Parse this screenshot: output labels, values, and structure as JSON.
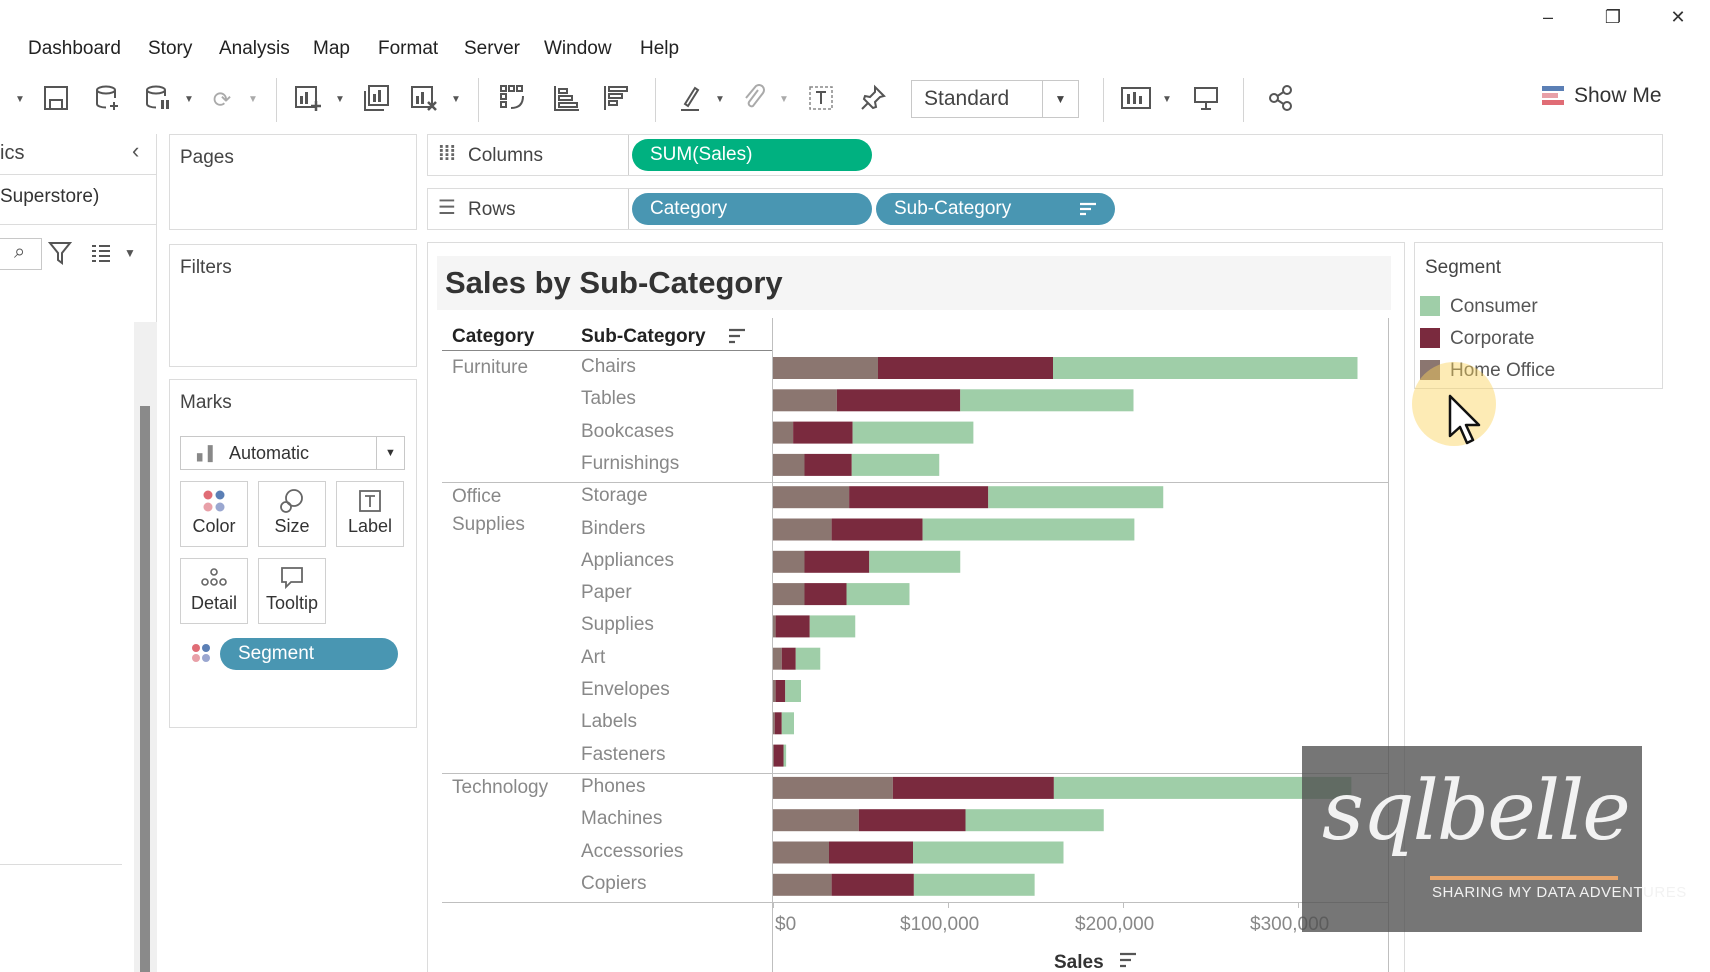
{
  "window": {
    "controls": {
      "minimize": "–",
      "restore": "❐",
      "close": "✕"
    }
  },
  "menu": {
    "items": [
      "Dashboard",
      "Story",
      "Analysis",
      "Map",
      "Format",
      "Server",
      "Window",
      "Help"
    ]
  },
  "toolbar": {
    "fit_select": {
      "value": "Standard"
    },
    "show_me": "Show Me"
  },
  "data_pane": {
    "tab_fragment": "ics",
    "datasource_fragment": "Superstore)"
  },
  "cards": {
    "pages": "Pages",
    "filters": "Filters",
    "marks": "Marks",
    "mark_type": "Automatic",
    "mark_buttons": {
      "color": "Color",
      "size": "Size",
      "label": "Label",
      "detail": "Detail",
      "tooltip": "Tooltip"
    },
    "color_pill": "Segment"
  },
  "shelves": {
    "columns_label": "Columns",
    "rows_label": "Rows",
    "columns_pills": [
      "SUM(Sales)"
    ],
    "rows_pills": [
      "Category",
      "Sub-Category"
    ]
  },
  "legend": {
    "title": "Segment",
    "items": [
      {
        "label": "Consumer",
        "color": "#9fcea8"
      },
      {
        "label": "Corporate",
        "color": "#7a2a3e"
      },
      {
        "label": "Home Office",
        "color": "#8b7670"
      }
    ]
  },
  "chart_data": {
    "type": "bar",
    "orientation": "horizontal-stacked",
    "title": "Sales by Sub-Category",
    "column_headers": [
      "Category",
      "Sub-Category"
    ],
    "xlabel": "Sales",
    "xlim": [
      0,
      350000
    ],
    "x_ticks": [
      "$0",
      "$100,000",
      "$200,000",
      "$300,000"
    ],
    "grid": false,
    "series_names": [
      "Home Office",
      "Corporate",
      "Consumer"
    ],
    "series_colors": [
      "#8b7670",
      "#7a2a3e",
      "#9fcea8"
    ],
    "groups": [
      {
        "category": "Furniture",
        "rows": [
          {
            "sub": "Chairs",
            "values": [
              60000,
              100000,
              174000
            ]
          },
          {
            "sub": "Tables",
            "values": [
              36500,
              70500,
              99000
            ]
          },
          {
            "sub": "Bookcases",
            "values": [
              11500,
              34000,
              69000
            ]
          },
          {
            "sub": "Furnishings",
            "values": [
              18000,
              27000,
              50000
            ]
          }
        ]
      },
      {
        "category": "Office\nSupplies",
        "rows": [
          {
            "sub": "Storage",
            "values": [
              43500,
              79500,
              100000
            ]
          },
          {
            "sub": "Binders",
            "values": [
              33500,
              52000,
              121000
            ]
          },
          {
            "sub": "Appliances",
            "values": [
              18000,
              37000,
              52000
            ]
          },
          {
            "sub": "Paper",
            "values": [
              18000,
              24000,
              36000
            ]
          },
          {
            "sub": "Supplies",
            "values": [
              1500,
              19500,
              26000
            ]
          },
          {
            "sub": "Art",
            "values": [
              5000,
              8000,
              14000
            ]
          },
          {
            "sub": "Envelopes",
            "values": [
              1500,
              5500,
              9000
            ]
          },
          {
            "sub": "Labels",
            "values": [
              1000,
              4000,
              7000
            ]
          },
          {
            "sub": "Fasteners",
            "values": [
              500,
              5500,
              1500
            ]
          }
        ]
      },
      {
        "category": "Technology",
        "rows": [
          {
            "sub": "Phones",
            "values": [
              68500,
              92000,
              170000
            ]
          },
          {
            "sub": "Machines",
            "values": [
              49000,
              61000,
              79000
            ]
          },
          {
            "sub": "Accessories",
            "values": [
              32000,
              48000,
              86000
            ]
          },
          {
            "sub": "Copiers",
            "values": [
              33500,
              47000,
              69000
            ]
          }
        ]
      }
    ]
  },
  "watermark": {
    "logo": "sqlbelle",
    "tagline": "SHARING MY DATA ADVENTURES"
  }
}
